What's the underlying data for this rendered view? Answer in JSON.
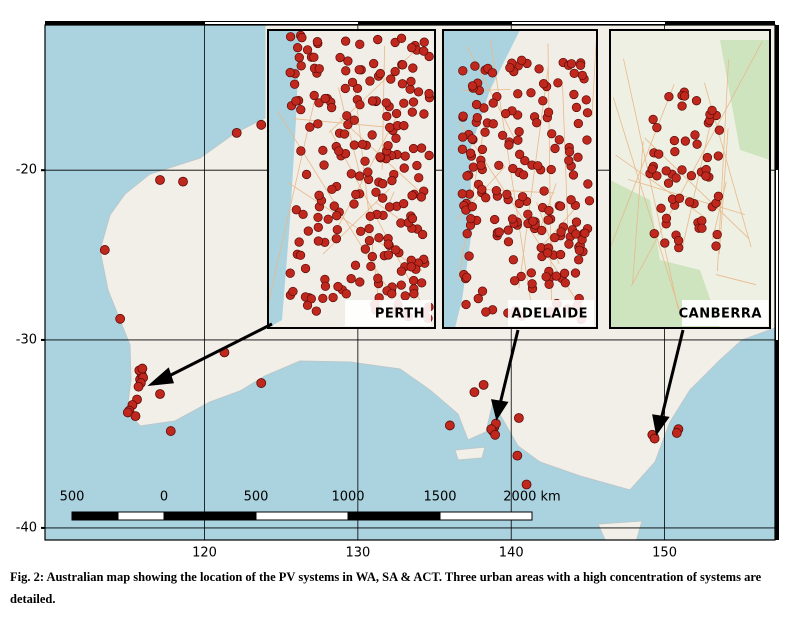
{
  "map": {
    "xlim": [
      109.6,
      157.2
    ],
    "ylim": [
      -40.6,
      -10.9
    ],
    "xticks": [
      120,
      130,
      140,
      150
    ],
    "yticks": [
      -20,
      -30,
      -40
    ],
    "grid": true,
    "color": "#c0281e",
    "points": {
      "lon": [
        115.8,
        115.9,
        115.75,
        116.0,
        115.85,
        115.7,
        115.95,
        115.6,
        115.3,
        115.1,
        115.0,
        115.5,
        117.1,
        117.8,
        122.1,
        123.7,
        117.1,
        118.6,
        113.5,
        114.5,
        121.3,
        123.7,
        138.9,
        138.8,
        139.0,
        138.7,
        138.95,
        137.6,
        138.2,
        140.5,
        140.4,
        141.0,
        136.0,
        149.3,
        149.2,
        149.35,
        150.9,
        150.8
      ],
      "lat": [
        -32.2,
        -31.9,
        -31.7,
        -32.1,
        -32.4,
        -32.6,
        -31.6,
        -33.3,
        -33.6,
        -33.9,
        -34.0,
        -34.2,
        -33.0,
        -35.0,
        -17.7,
        -17.2,
        -20.6,
        -20.7,
        -24.8,
        -28.8,
        -30.7,
        -32.4,
        -34.8,
        -35.0,
        -34.6,
        -34.9,
        -35.2,
        -32.9,
        -32.5,
        -34.3,
        -36.3,
        -37.8,
        -34.7,
        -35.3,
        -35.2,
        -35.4,
        -34.9,
        -35.1
      ]
    }
  },
  "insets": [
    {
      "label": "PERTH"
    },
    {
      "label": "ADELAIDE"
    },
    {
      "label": "CANBERRA"
    }
  ],
  "scale_bar": {
    "labels": [
      "500",
      "0",
      "500",
      "1000",
      "1500",
      "2000 km"
    ]
  },
  "caption": "Fig. 2: Australian map showing the location of the PV systems in WA, SA & ACT. Three urban areas with a high concentration of systems are detailed."
}
